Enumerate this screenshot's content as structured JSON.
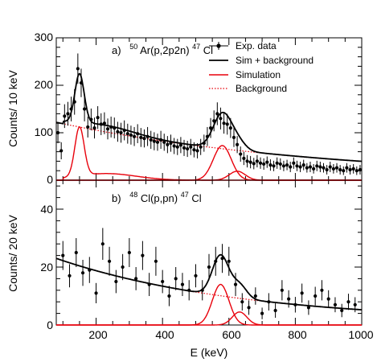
{
  "colors": {
    "data": "#000000",
    "sim_plus_bg": "#000000",
    "simulation": "#e8000b",
    "background": "#e8000b"
  },
  "xaxis": {
    "label": "E (keV)",
    "ticks": [
      "200",
      "400",
      "600",
      "800",
      "1000"
    ],
    "range": [
      80,
      1000
    ]
  },
  "chart_data": [
    {
      "type": "scatter",
      "title": "a)",
      "reaction": {
        "a": "50",
        "b": "Ar(p,2p2n)",
        "c": "47",
        "d": "Cl"
      },
      "ylabel": "Counts/ 10 keV",
      "ylim": [
        0,
        300
      ],
      "yticks": [
        "0",
        "100",
        "200",
        "300"
      ],
      "legend": {
        "placement": "top-right",
        "entries": [
          "Exp. data",
          "Sim + background",
          "Simulation",
          "Background"
        ]
      },
      "data": {
        "x": [
          85,
          95,
          105,
          115,
          125,
          135,
          145,
          155,
          165,
          175,
          185,
          195,
          205,
          215,
          225,
          235,
          245,
          255,
          265,
          275,
          285,
          295,
          305,
          315,
          325,
          335,
          345,
          355,
          365,
          375,
          385,
          395,
          405,
          415,
          425,
          435,
          445,
          455,
          465,
          475,
          485,
          495,
          505,
          515,
          525,
          535,
          545,
          555,
          565,
          575,
          585,
          595,
          605,
          615,
          625,
          635,
          645,
          655,
          665,
          675,
          685,
          695,
          705,
          715,
          725,
          735,
          745,
          755,
          765,
          775,
          785,
          795,
          805,
          815,
          825,
          835,
          845,
          855,
          865,
          875,
          885,
          895,
          905,
          915,
          925,
          935,
          945,
          955,
          965,
          975,
          985,
          995
        ],
        "y": [
          100,
          62,
          135,
          140,
          150,
          165,
          235,
          205,
          150,
          112,
          128,
          110,
          132,
          118,
          120,
          108,
          112,
          110,
          102,
          100,
          105,
          98,
          95,
          92,
          98,
          90,
          88,
          92,
          85,
          82,
          80,
          85,
          80,
          75,
          78,
          72,
          70,
          74,
          68,
          66,
          70,
          64,
          62,
          70,
          78,
          92,
          110,
          125,
          140,
          130,
          120,
          118,
          110,
          90,
          75,
          55,
          46,
          40,
          38,
          35,
          40,
          36,
          34,
          38,
          32,
          30,
          36,
          34,
          30,
          32,
          28,
          36,
          30,
          28,
          32,
          26,
          28,
          24,
          30,
          28,
          26,
          22,
          28,
          24,
          26,
          22,
          20,
          26,
          22,
          24,
          20,
          22
        ],
        "err": [
          22,
          18,
          25,
          25,
          26,
          27,
          32,
          30,
          26,
          22,
          23,
          22,
          24,
          23,
          23,
          22,
          22,
          22,
          21,
          21,
          21,
          21,
          20,
          20,
          20,
          20,
          19,
          20,
          19,
          19,
          18,
          19,
          18,
          18,
          18,
          17,
          17,
          17,
          17,
          17,
          17,
          16,
          16,
          17,
          18,
          20,
          21,
          22,
          24,
          23,
          22,
          22,
          21,
          20,
          18,
          16,
          14,
          13,
          13,
          12,
          13,
          12,
          12,
          12,
          12,
          11,
          12,
          12,
          11,
          11,
          11,
          12,
          11,
          11,
          11,
          10,
          11,
          10,
          11,
          11,
          10,
          10,
          11,
          10,
          10,
          10,
          9,
          10,
          10,
          10,
          9,
          10
        ]
      }
    },
    {
      "type": "scatter",
      "title": "b)",
      "reaction": {
        "a": "48",
        "b": "Cl(p,pn)",
        "c": "47",
        "d": "Cl"
      },
      "ylabel": "Counts/ 20 keV",
      "ylim": [
        0,
        50
      ],
      "yticks": [
        "0",
        "20",
        "40"
      ],
      "data": {
        "x": [
          100,
          120,
          140,
          160,
          180,
          200,
          220,
          240,
          260,
          280,
          300,
          320,
          340,
          360,
          380,
          400,
          420,
          440,
          460,
          480,
          500,
          520,
          540,
          560,
          580,
          600,
          620,
          640,
          660,
          680,
          700,
          720,
          740,
          760,
          780,
          800,
          820,
          840,
          860,
          880,
          900,
          920,
          940,
          960,
          980
        ],
        "y": [
          24,
          17,
          25,
          18,
          19,
          11,
          28,
          22,
          15,
          20,
          25,
          16,
          24,
          14,
          22,
          15,
          10,
          16,
          14,
          12,
          17,
          12,
          20,
          22,
          23,
          22,
          14,
          8,
          6,
          10,
          4,
          8,
          5,
          12,
          9,
          7,
          11,
          6,
          10,
          12,
          9,
          7,
          5,
          8,
          7
        ],
        "err": [
          5,
          4,
          5,
          4.5,
          4.5,
          3.5,
          5.5,
          5,
          4,
          4.5,
          5,
          4,
          5,
          4,
          5,
          4,
          3.5,
          4,
          4,
          3.5,
          4,
          3.5,
          4.5,
          5,
          5,
          5,
          4,
          3,
          2.5,
          3,
          2,
          3,
          2.5,
          3.5,
          3,
          2.7,
          3.3,
          2.5,
          3.2,
          3.5,
          3,
          2.6,
          2.3,
          2.8,
          2.6
        ]
      }
    }
  ]
}
